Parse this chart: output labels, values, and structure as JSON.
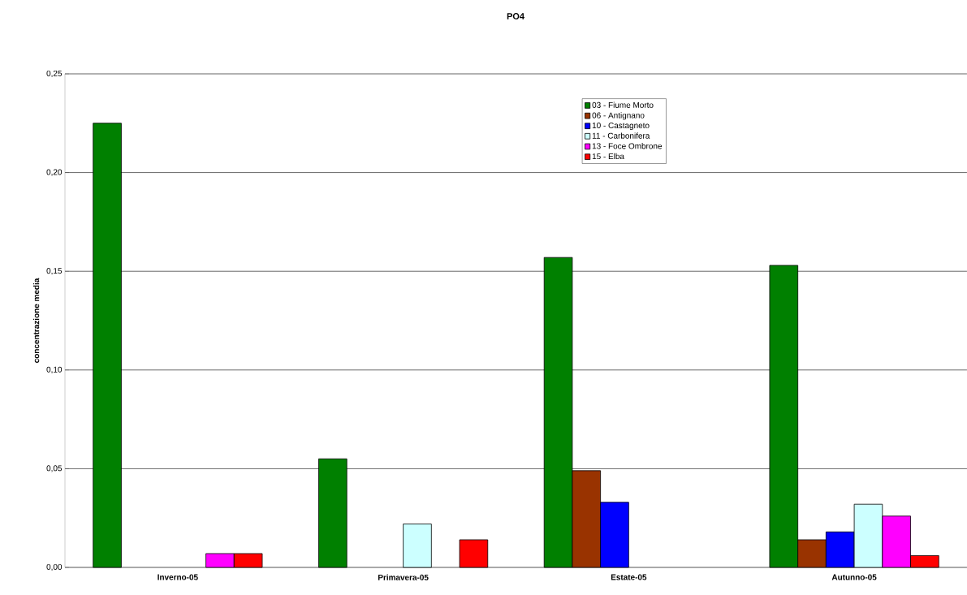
{
  "chart_data": {
    "type": "bar",
    "title": "PO4",
    "ylabel": "concentrazione media",
    "categories": [
      "Inverno-05",
      "Primavera-05",
      "Estate-05",
      "Autunno-05"
    ],
    "series": [
      {
        "name": "03 - Fiume Morto",
        "color": "#008000",
        "values": [
          0.225,
          0.055,
          0.157,
          0.153
        ]
      },
      {
        "name": "06 - Antignano",
        "color": "#993300",
        "values": [
          null,
          null,
          0.049,
          0.014
        ]
      },
      {
        "name": "10 - Castagneto",
        "color": "#0000ff",
        "values": [
          null,
          null,
          0.033,
          0.018
        ]
      },
      {
        "name": "11 - Carbonifera",
        "color": "#ccffff",
        "values": [
          null,
          0.022,
          null,
          0.032
        ]
      },
      {
        "name": "13 - Foce Ombrone",
        "color": "#ff00ff",
        "values": [
          0.007,
          null,
          null,
          0.026
        ]
      },
      {
        "name": "15 - Elba",
        "color": "#ff0000",
        "values": [
          0.007,
          0.014,
          null,
          0.006
        ]
      }
    ],
    "ylim": [
      0,
      0.25
    ],
    "yticks": [
      {
        "value": 0,
        "label": "0,00"
      },
      {
        "value": 0.05,
        "label": "0,05"
      },
      {
        "value": 0.1,
        "label": "0,10"
      },
      {
        "value": 0.15,
        "label": "0,15"
      },
      {
        "value": 0.2,
        "label": "0,20"
      },
      {
        "value": 0.25,
        "label": "0,25"
      }
    ],
    "grid": "y",
    "legend": "top"
  }
}
